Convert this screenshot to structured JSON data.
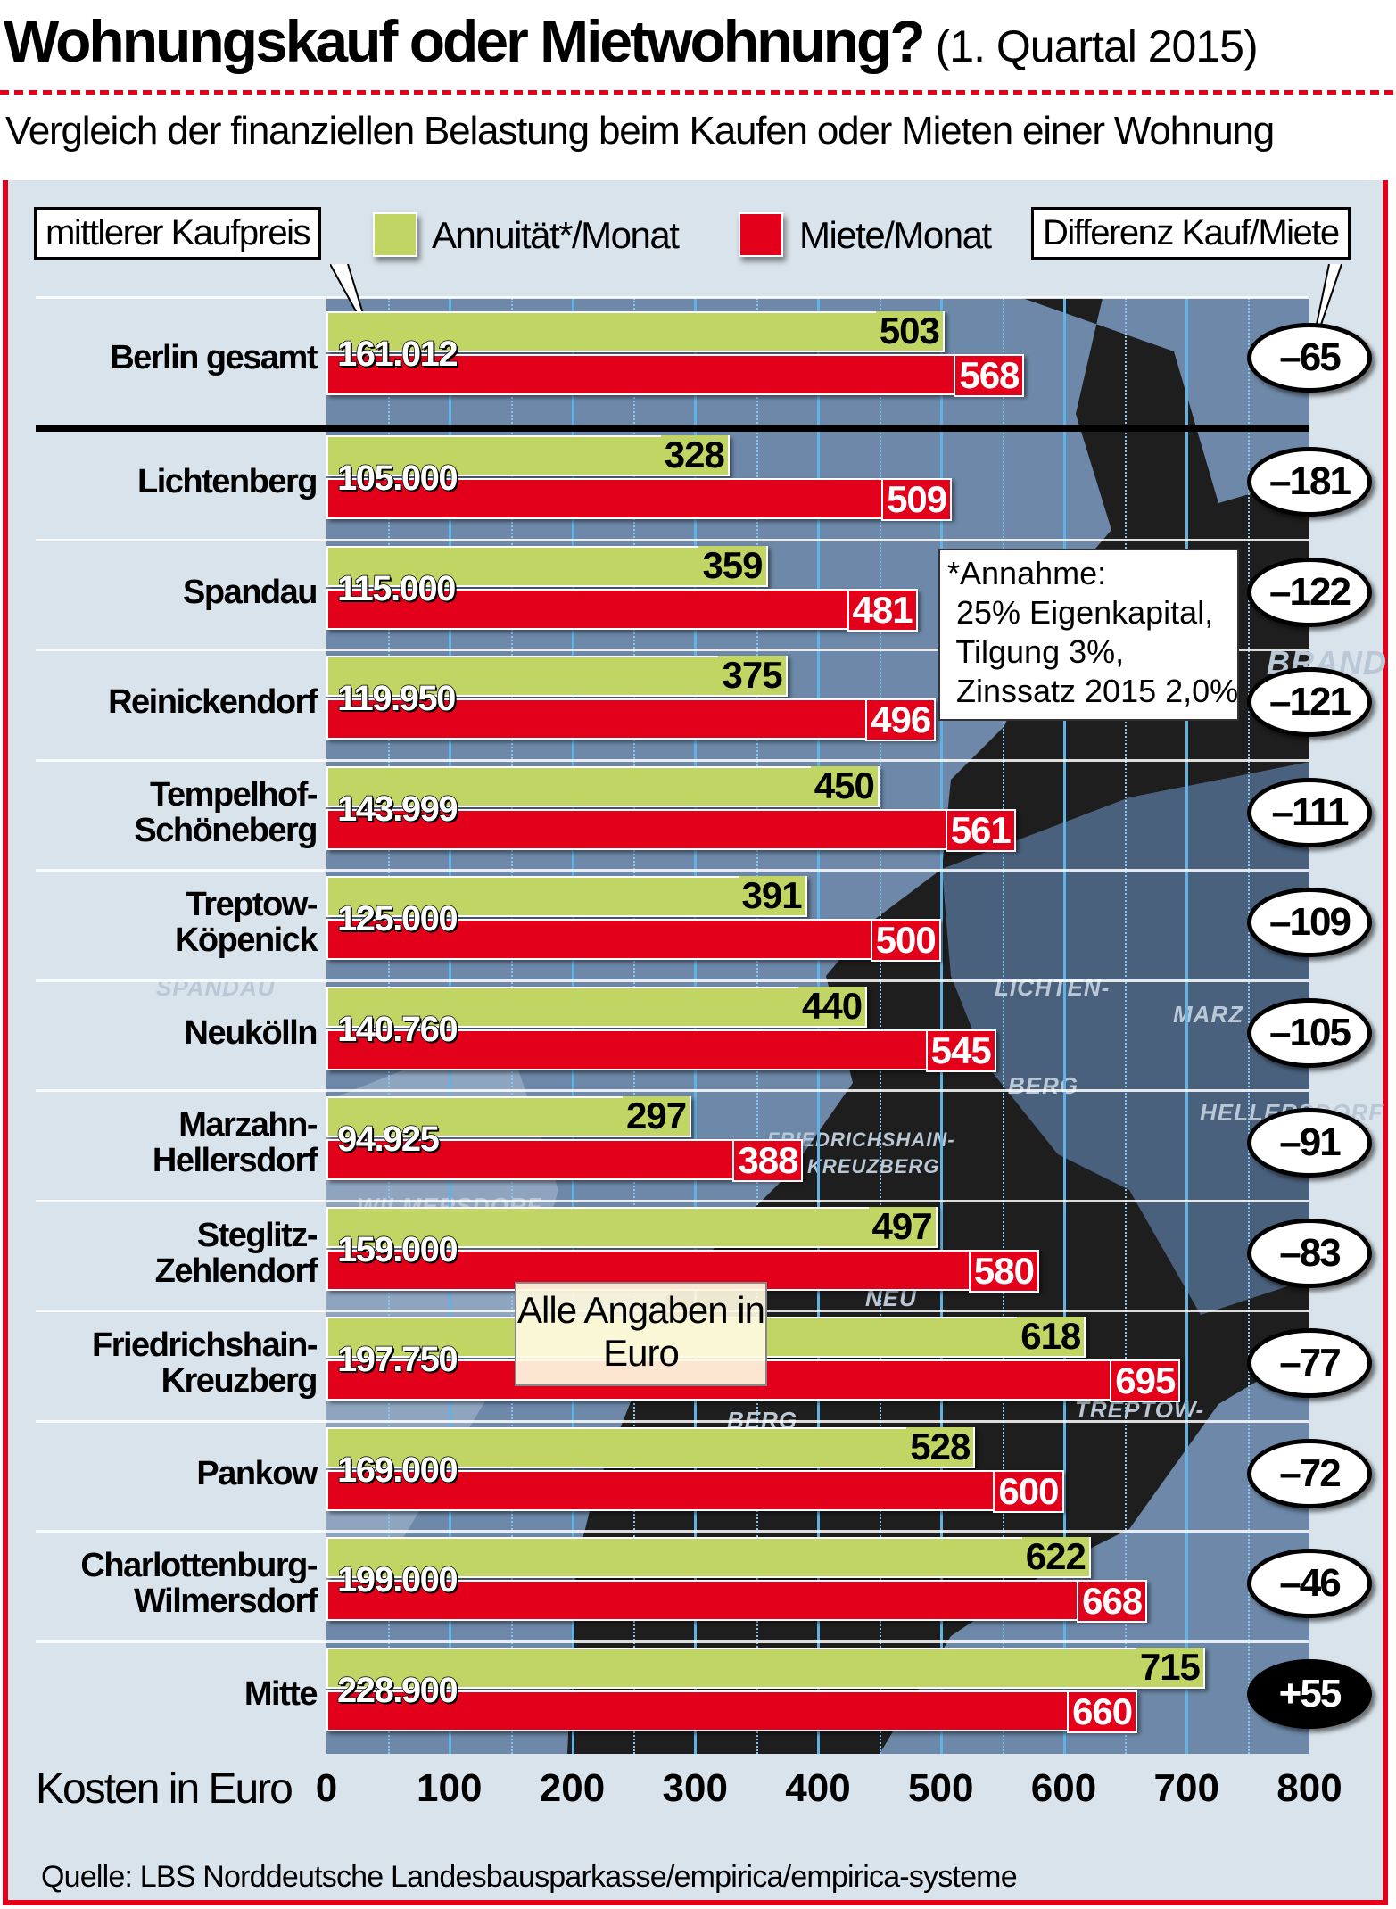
{
  "header": {
    "title": "Wohnungskauf oder Mietwohnung?",
    "period": "(1. Quartal  2015)",
    "subtitle": "Vergleich der finanziellen Belastung beim Kaufen oder Mieten einer Wohnung"
  },
  "legend": {
    "price_label": "mittlerer Kaufpreis",
    "annuity_label": "Annuität*/Monat",
    "rent_label": "Miete/Monat",
    "diff_label": "Differenz Kauf/Miete"
  },
  "note": "*Annahme:\n 25% Eigenkapital,\n Tilgung 3%,\n Zinssatz 2015 2,0%",
  "note2": "Alle Angaben in Euro",
  "map_labels": [
    "BRAND",
    "SPANDAU",
    "LICHTEN-",
    "BERG",
    "MARZ",
    "HELLERSDORF",
    "FRIEDRICHSHAIN-",
    "KREUZBERG",
    "WILMERSDORF",
    "NEU",
    "BERG",
    "TREPTOW-"
  ],
  "source": "Quelle: LBS Norddeutsche Landesbausparkasse/empirica/empirica-systeme",
  "colors": {
    "annuity": "#c1d564",
    "rent": "#e2001a",
    "plot": "#6d88a8",
    "background": "#d9e3eb"
  },
  "chart_data": {
    "type": "bar",
    "orientation": "horizontal",
    "title": "Wohnungskauf oder Mietwohnung? (1. Quartal 2015)",
    "xlabel": "Kosten in Euro",
    "xlim": [
      0,
      800
    ],
    "xticks": [
      "0",
      "100",
      "200",
      "300",
      "400",
      "500",
      "600",
      "700",
      "800"
    ],
    "categories": [
      [
        "Berlin gesamt"
      ],
      [
        "Lichtenberg"
      ],
      [
        "Spandau"
      ],
      [
        "Reinickendorf"
      ],
      [
        "Tempelhof-",
        "Schöneberg"
      ],
      [
        "Treptow-",
        "Köpenick"
      ],
      [
        "Neukölln"
      ],
      [
        "Marzahn-",
        "Hellersdorf"
      ],
      [
        "Steglitz-",
        "Zehlendorf"
      ],
      [
        "Friedrichshain-",
        "Kreuzberg"
      ],
      [
        "Pankow"
      ],
      [
        "Charlottenburg-",
        "Wilmersdorf"
      ],
      [
        "Mitte"
      ]
    ],
    "purchase_price": [
      "161.012",
      "105.000",
      "115.000",
      "119.950",
      "143.999",
      "125.000",
      "140.760",
      "94.925",
      "159.000",
      "197.750",
      "169.000",
      "199.000",
      "228.900"
    ],
    "series": [
      {
        "name": "Annuität*/Monat",
        "values": [
          503,
          328,
          359,
          375,
          450,
          391,
          440,
          297,
          497,
          618,
          528,
          622,
          715
        ]
      },
      {
        "name": "Miete/Monat",
        "values": [
          568,
          509,
          481,
          496,
          561,
          500,
          545,
          388,
          580,
          695,
          600,
          668,
          660
        ]
      }
    ],
    "difference": [
      "–65",
      "–181",
      "–122",
      "–121",
      "–111",
      "–109",
      "–105",
      "–91",
      "–83",
      "–77",
      "–72",
      "–46",
      "+55"
    ]
  }
}
